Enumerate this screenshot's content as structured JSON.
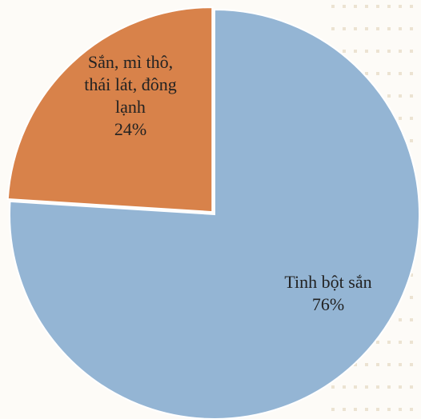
{
  "chart_data": {
    "type": "pie",
    "title": "",
    "slices": [
      {
        "label_lines": [
          "Sắn, mì thô,",
          "thái lát, đông",
          "lạnh"
        ],
        "label": "Sắn, mì thô, thái lát, đông lạnh",
        "value": 24,
        "value_label": "24%",
        "color": "#d8824a",
        "exploded": true
      },
      {
        "label_lines": [
          "Tinh bột sắn"
        ],
        "label": "Tinh bột sắn",
        "value": 76,
        "value_label": "76%",
        "color": "#94b5d4",
        "exploded": false
      }
    ],
    "start_angle_deg": 0,
    "direction": "counterclockwise",
    "legend": "none"
  },
  "colors": {
    "background": "#fdfbf7",
    "slice_border": "#ffffff",
    "text": "#222222"
  }
}
